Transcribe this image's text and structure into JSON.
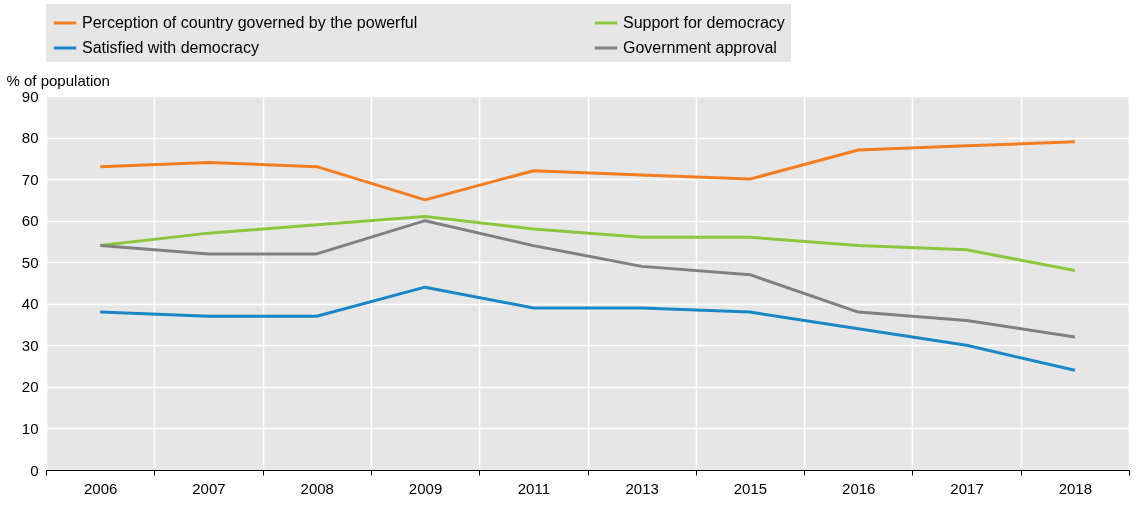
{
  "chart_data": {
    "type": "line",
    "ylabel": "% of population",
    "categories": [
      "2006",
      "2007",
      "2008",
      "2009",
      "2011",
      "2013",
      "2015",
      "2016",
      "2017",
      "2018"
    ],
    "series": [
      {
        "name": "Perception of country governed by the powerful",
        "color": "#f47d20",
        "values": [
          73,
          74,
          73,
          65,
          72,
          71,
          70,
          77,
          78,
          79
        ]
      },
      {
        "name": "Support for democracy",
        "color": "#8cc63f",
        "values": [
          54,
          57,
          59,
          61,
          58,
          56,
          56,
          54,
          53,
          48
        ]
      },
      {
        "name": "Satisfied with democracy",
        "color": "#1b86c6",
        "values": [
          38,
          37,
          37,
          44,
          39,
          39,
          38,
          34,
          30,
          24
        ]
      },
      {
        "name": "Government approval",
        "color": "#808080",
        "values": [
          54,
          52,
          52,
          60,
          54,
          49,
          47,
          38,
          36,
          32
        ]
      }
    ],
    "ylim": [
      0,
      90
    ],
    "yticks": [
      0,
      10,
      20,
      30,
      40,
      50,
      60,
      70,
      80,
      90
    ],
    "grid": true,
    "legend": "top"
  }
}
